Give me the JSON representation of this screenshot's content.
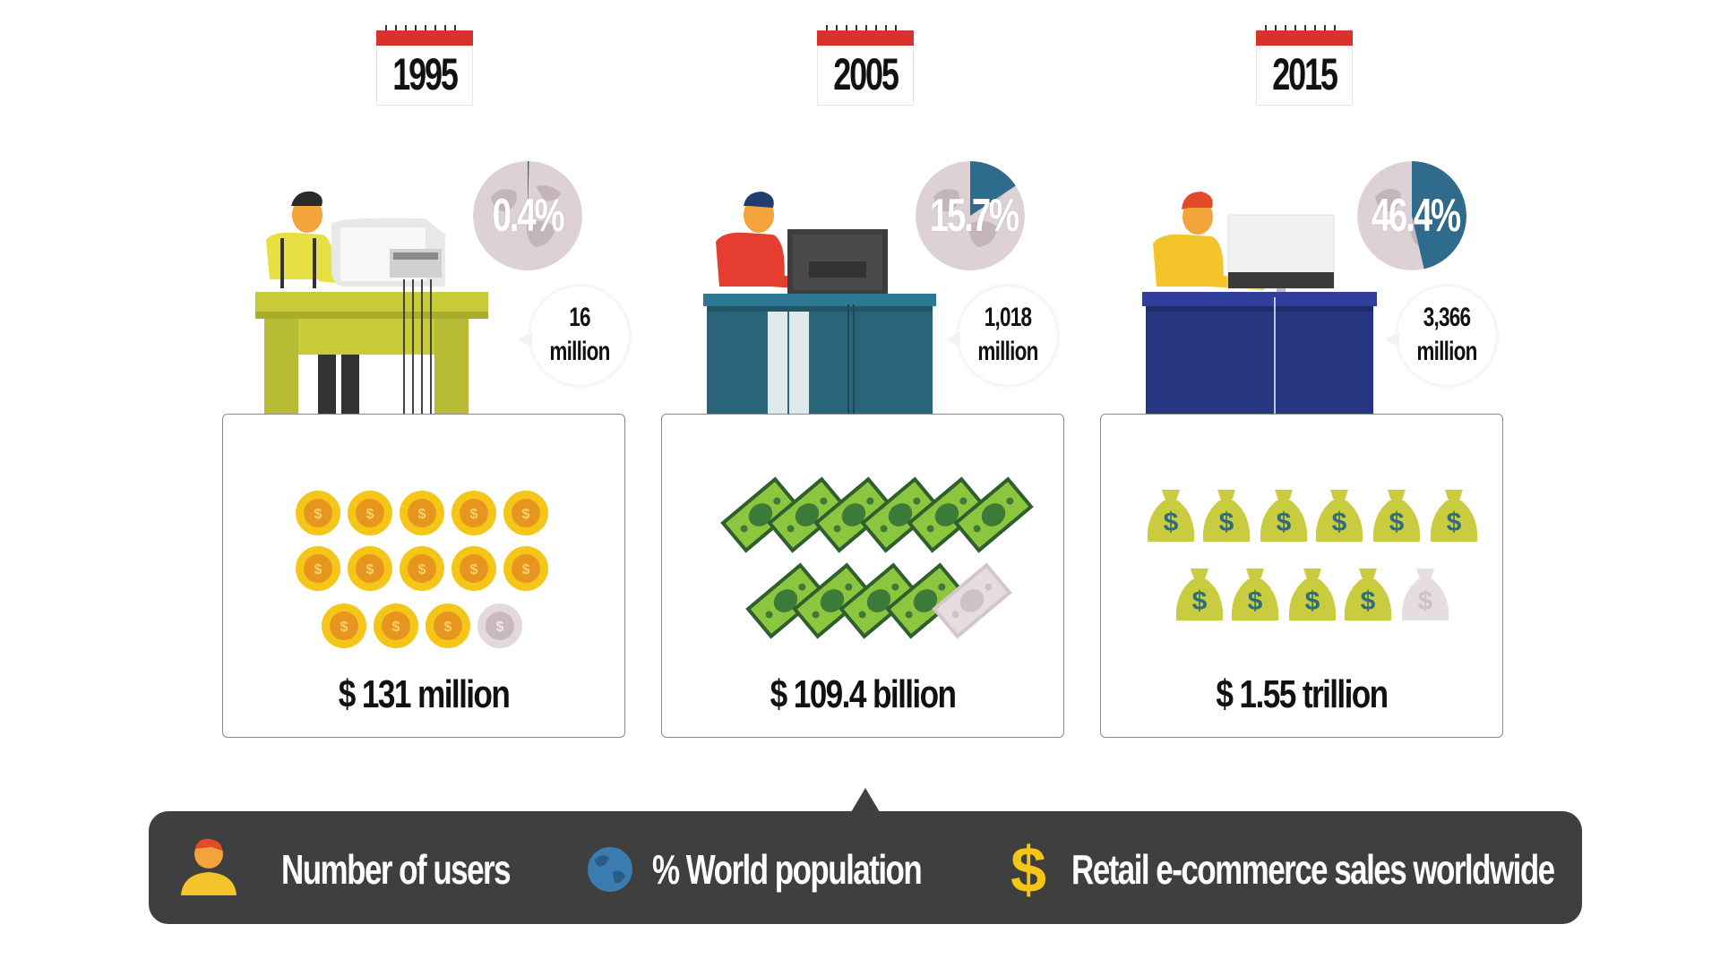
{
  "years": [
    {
      "year": "1995",
      "world_population_pct": "0.4%",
      "pct_value": 0.4,
      "users_number": "16",
      "users_unit": "million",
      "sales": "$ 131 million",
      "sales_icon": "coin-icon",
      "sales_icon_count": 13,
      "sales_icon_partial": 1
    },
    {
      "year": "2005",
      "world_population_pct": "15.7%",
      "pct_value": 15.7,
      "users_number": "1,018",
      "users_unit": "million",
      "sales": "$ 109.4 billion",
      "sales_icon": "banknote-icon",
      "sales_icon_count": 10,
      "sales_icon_partial": 1
    },
    {
      "year": "2015",
      "world_population_pct": "46.4%",
      "pct_value": 46.4,
      "users_number": "3,366",
      "users_unit": "million",
      "sales": "$ 1.55 trillion",
      "sales_icon": "money-bag-icon",
      "sales_icon_count": 10,
      "sales_icon_partial": 1
    }
  ],
  "legend": {
    "users_label": "Number of users",
    "users_icon": "user-icon",
    "population_label": "% World population",
    "population_icon": "globe-icon",
    "sales_label": "Retail e-commerce sales worldwide",
    "sales_icon": "dollar-sign-icon"
  },
  "colors": {
    "legend_background": "#3f3f3f",
    "globe_fill": "#ddd1d6",
    "globe_slice": "#2f6b8c",
    "coin": "#f5c518",
    "banknote": "#8cc63f",
    "money_bag": "#c9cc3f",
    "desk_1995": "#c8cc38",
    "desk_2005": "#2a6478",
    "desk_2015": "#26357f",
    "calendar_red": "#d9322c"
  }
}
